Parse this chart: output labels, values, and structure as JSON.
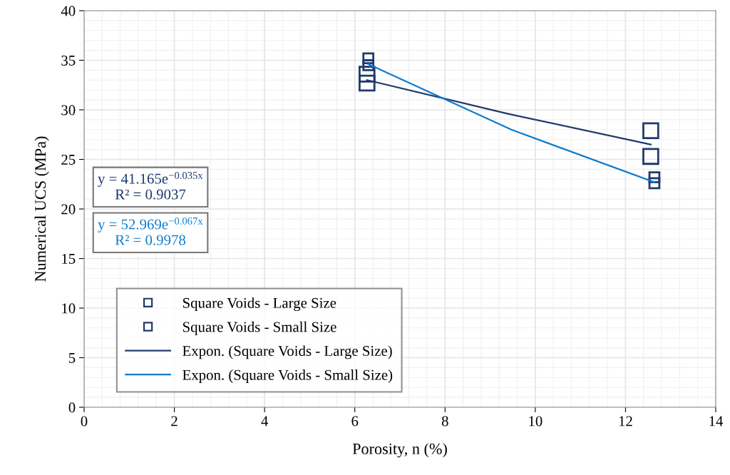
{
  "chart_data": {
    "type": "scatter",
    "xlabel": "Porosity, n (%)",
    "ylabel": "Numerical UCS (MPa)",
    "xlim": [
      0,
      14
    ],
    "xticks": [
      0,
      2,
      4,
      6,
      8,
      10,
      12,
      14
    ],
    "ylim": [
      0,
      40
    ],
    "yticks": [
      0,
      5,
      10,
      15,
      20,
      25,
      30,
      35,
      40
    ],
    "grid": true,
    "legend": "bottom left",
    "marker": "square",
    "series": [
      {
        "name": "Square Voids - Large Size",
        "color": "#1f3a6e",
        "x": [
          6.27,
          6.27,
          12.56,
          12.56
        ],
        "values": [
          33.6,
          32.7,
          27.9,
          25.3
        ]
      },
      {
        "name": "Square Voids - Small Size",
        "color": "#1f3a6e",
        "x": [
          6.3,
          6.3,
          12.64,
          12.64
        ],
        "values": [
          35.2,
          34.5,
          23.2,
          22.6
        ]
      },
      {
        "name": "Expon. (Square Voids - Large Size)",
        "type": "line",
        "marker": "none",
        "color": "#1f3a6e",
        "line_style": "solid",
        "x": [
          6.27,
          9.4,
          12.56
        ],
        "values": [
          33.0,
          29.6,
          26.5
        ]
      },
      {
        "name": "Expon. (Square Voids - Small Size)",
        "type": "line",
        "marker": "none",
        "color": "#0e7ccc",
        "line_style": "solid",
        "x": [
          6.3,
          9.47,
          12.64
        ],
        "values": [
          34.6,
          28.0,
          22.7
        ]
      }
    ],
    "annotations": [
      "y = 41.165e$^{−0.035x}$\nR² = 0.9037",
      "y = 52.969e$^{−0.067x}$\nR² = 0.9978"
    ]
  }
}
